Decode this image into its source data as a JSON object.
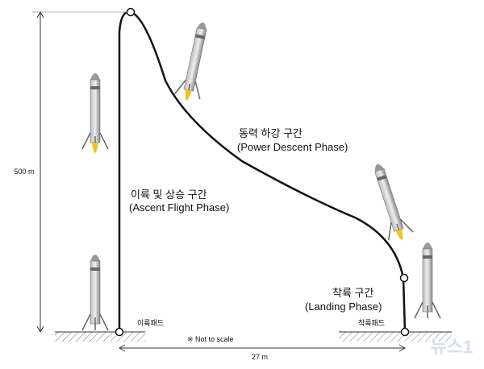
{
  "vertical_dimension": {
    "label": "500 m"
  },
  "horizontal_dimension": {
    "label": "27 m"
  },
  "phases": [
    {
      "label": "이륙 및 상승 구간",
      "sublabel": "(Ascent Flight Phase)"
    },
    {
      "label": "동력 하강 구간",
      "sublabel": "(Power Descent Phase)"
    },
    {
      "label": "착륙 구간",
      "sublabel": "(Landing Phase)"
    }
  ],
  "pads": {
    "takeoff": "이륙패드",
    "landing": "착륙패드"
  },
  "note": "※ Not to scale",
  "watermark": "뉴스1"
}
